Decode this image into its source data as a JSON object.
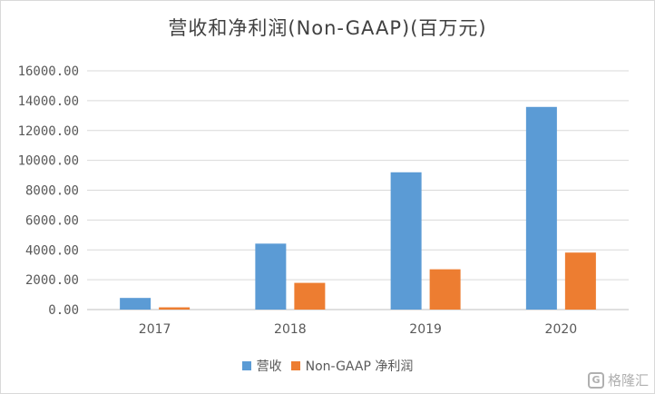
{
  "chart_data": {
    "type": "bar",
    "title": "营收和净利润(Non-GAAP)(百万元)",
    "categories": [
      "2017",
      "2018",
      "2019",
      "2020"
    ],
    "series": [
      {
        "name": "营收",
        "values": [
          780,
          4420,
          9200,
          13580
        ],
        "color": "#5b9bd5"
      },
      {
        "name": "Non-GAAP 净利润",
        "values": [
          150,
          1790,
          2700,
          3820
        ],
        "color": "#ed7d31"
      }
    ],
    "ylim": [
      0,
      16000
    ],
    "yticks": [
      "0.00",
      "2000.00",
      "4000.00",
      "6000.00",
      "8000.00",
      "10000.00",
      "12000.00",
      "14000.00",
      "16000.00"
    ],
    "grid": true,
    "legend": "bottom"
  },
  "watermark": {
    "text": "格隆汇",
    "icon": "G"
  }
}
